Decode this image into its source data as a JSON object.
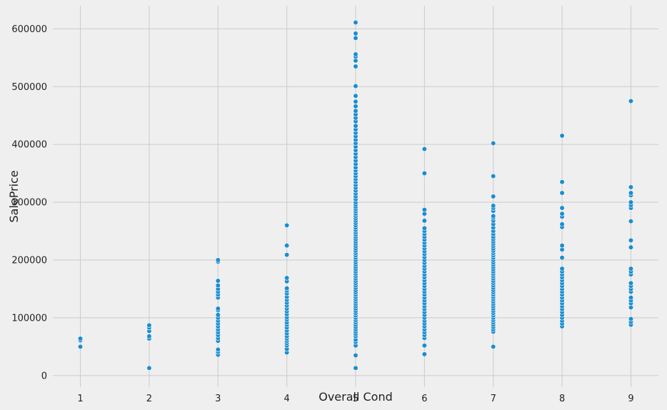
{
  "chart_data": {
    "type": "scatter",
    "xlabel": "Overall Cond",
    "ylabel": "SalePrice",
    "xlim": [
      0.6,
      9.4
    ],
    "ylim": [
      -20000,
      640000
    ],
    "xticks": [
      1,
      2,
      3,
      4,
      5,
      6,
      7,
      8,
      9
    ],
    "yticks": [
      0,
      100000,
      200000,
      300000,
      400000,
      500000,
      600000
    ],
    "grid": true,
    "colors": {
      "point": "#1b8dd0",
      "point_edge": "#ffffff",
      "background": "#efefef",
      "grid": "#cbcbcb"
    },
    "series": [
      {
        "points": [
          [
            1,
            50000
          ],
          [
            1,
            61000
          ],
          [
            1,
            64000
          ],
          [
            2,
            13000
          ],
          [
            2,
            64000
          ],
          [
            2,
            68000
          ],
          [
            2,
            77000
          ],
          [
            2,
            83000
          ],
          [
            2,
            87000
          ],
          [
            3,
            36000
          ],
          [
            3,
            41000
          ],
          [
            3,
            45000
          ],
          [
            3,
            60000
          ],
          [
            3,
            65000
          ],
          [
            3,
            70000
          ],
          [
            3,
            75000
          ],
          [
            3,
            80000
          ],
          [
            3,
            85000
          ],
          [
            3,
            90000
          ],
          [
            3,
            95000
          ],
          [
            3,
            100000
          ],
          [
            3,
            105000
          ],
          [
            3,
            113000
          ],
          [
            3,
            116000
          ],
          [
            3,
            135000
          ],
          [
            3,
            140000
          ],
          [
            3,
            145000
          ],
          [
            3,
            150000
          ],
          [
            3,
            156000
          ],
          [
            3,
            164000
          ],
          [
            3,
            197000
          ],
          [
            3,
            200000
          ],
          [
            4,
            40000
          ],
          [
            4,
            46000
          ],
          [
            4,
            52000
          ],
          [
            4,
            56000
          ],
          [
            4,
            60000
          ],
          [
            4,
            64000
          ],
          [
            4,
            68000
          ],
          [
            4,
            73000
          ],
          [
            4,
            78000
          ],
          [
            4,
            83000
          ],
          [
            4,
            88000
          ],
          [
            4,
            92000
          ],
          [
            4,
            97000
          ],
          [
            4,
            101000
          ],
          [
            4,
            106000
          ],
          [
            4,
            111000
          ],
          [
            4,
            116000
          ],
          [
            4,
            121000
          ],
          [
            4,
            126000
          ],
          [
            4,
            131000
          ],
          [
            4,
            136000
          ],
          [
            4,
            142000
          ],
          [
            4,
            147000
          ],
          [
            4,
            151000
          ],
          [
            4,
            163000
          ],
          [
            4,
            169000
          ],
          [
            4,
            209000
          ],
          [
            4,
            225000
          ],
          [
            4,
            260000
          ],
          [
            5,
            13000
          ],
          [
            5,
            35000
          ],
          [
            5,
            52000
          ],
          [
            5,
            58000
          ],
          [
            5,
            62000
          ],
          [
            5,
            68000
          ],
          [
            5,
            72000
          ],
          [
            5,
            76000
          ],
          [
            5,
            80000
          ],
          [
            5,
            84000
          ],
          [
            5,
            88000
          ],
          [
            5,
            92000
          ],
          [
            5,
            96000
          ],
          [
            5,
            100000
          ],
          [
            5,
            104000
          ],
          [
            5,
            108000
          ],
          [
            5,
            112000
          ],
          [
            5,
            116000
          ],
          [
            5,
            120000
          ],
          [
            5,
            124000
          ],
          [
            5,
            128000
          ],
          [
            5,
            132000
          ],
          [
            5,
            136000
          ],
          [
            5,
            140000
          ],
          [
            5,
            144000
          ],
          [
            5,
            148000
          ],
          [
            5,
            152000
          ],
          [
            5,
            156000
          ],
          [
            5,
            160000
          ],
          [
            5,
            164000
          ],
          [
            5,
            168000
          ],
          [
            5,
            172000
          ],
          [
            5,
            176000
          ],
          [
            5,
            180000
          ],
          [
            5,
            184000
          ],
          [
            5,
            188000
          ],
          [
            5,
            192000
          ],
          [
            5,
            196000
          ],
          [
            5,
            200000
          ],
          [
            5,
            204000
          ],
          [
            5,
            208000
          ],
          [
            5,
            212000
          ],
          [
            5,
            216000
          ],
          [
            5,
            220000
          ],
          [
            5,
            224000
          ],
          [
            5,
            228000
          ],
          [
            5,
            232000
          ],
          [
            5,
            236000
          ],
          [
            5,
            240000
          ],
          [
            5,
            244000
          ],
          [
            5,
            248000
          ],
          [
            5,
            252000
          ],
          [
            5,
            256000
          ],
          [
            5,
            260000
          ],
          [
            5,
            264000
          ],
          [
            5,
            268000
          ],
          [
            5,
            272000
          ],
          [
            5,
            276000
          ],
          [
            5,
            280000
          ],
          [
            5,
            284000
          ],
          [
            5,
            288000
          ],
          [
            5,
            292000
          ],
          [
            5,
            296000
          ],
          [
            5,
            300000
          ],
          [
            5,
            305000
          ],
          [
            5,
            310000
          ],
          [
            5,
            315000
          ],
          [
            5,
            320000
          ],
          [
            5,
            325000
          ],
          [
            5,
            330000
          ],
          [
            5,
            335000
          ],
          [
            5,
            340000
          ],
          [
            5,
            345000
          ],
          [
            5,
            350000
          ],
          [
            5,
            355000
          ],
          [
            5,
            360000
          ],
          [
            5,
            366000
          ],
          [
            5,
            372000
          ],
          [
            5,
            378000
          ],
          [
            5,
            384000
          ],
          [
            5,
            390000
          ],
          [
            5,
            396000
          ],
          [
            5,
            402000
          ],
          [
            5,
            408000
          ],
          [
            5,
            414000
          ],
          [
            5,
            420000
          ],
          [
            5,
            426000
          ],
          [
            5,
            432000
          ],
          [
            5,
            440000
          ],
          [
            5,
            446000
          ],
          [
            5,
            452000
          ],
          [
            5,
            458000
          ],
          [
            5,
            466000
          ],
          [
            5,
            474000
          ],
          [
            5,
            484000
          ],
          [
            5,
            501000
          ],
          [
            5,
            535000
          ],
          [
            5,
            545000
          ],
          [
            5,
            552000
          ],
          [
            5,
            556000
          ],
          [
            5,
            584000
          ],
          [
            5,
            592000
          ],
          [
            5,
            611000
          ],
          [
            6,
            37000
          ],
          [
            6,
            52000
          ],
          [
            6,
            65000
          ],
          [
            6,
            70000
          ],
          [
            6,
            75000
          ],
          [
            6,
            80000
          ],
          [
            6,
            85000
          ],
          [
            6,
            90000
          ],
          [
            6,
            95000
          ],
          [
            6,
            100000
          ],
          [
            6,
            105000
          ],
          [
            6,
            110000
          ],
          [
            6,
            115000
          ],
          [
            6,
            120000
          ],
          [
            6,
            125000
          ],
          [
            6,
            130000
          ],
          [
            6,
            135000
          ],
          [
            6,
            140000
          ],
          [
            6,
            145000
          ],
          [
            6,
            150000
          ],
          [
            6,
            155000
          ],
          [
            6,
            160000
          ],
          [
            6,
            165000
          ],
          [
            6,
            170000
          ],
          [
            6,
            175000
          ],
          [
            6,
            180000
          ],
          [
            6,
            185000
          ],
          [
            6,
            190000
          ],
          [
            6,
            195000
          ],
          [
            6,
            200000
          ],
          [
            6,
            205000
          ],
          [
            6,
            210000
          ],
          [
            6,
            215000
          ],
          [
            6,
            220000
          ],
          [
            6,
            225000
          ],
          [
            6,
            230000
          ],
          [
            6,
            235000
          ],
          [
            6,
            240000
          ],
          [
            6,
            245000
          ],
          [
            6,
            250000
          ],
          [
            6,
            255000
          ],
          [
            6,
            268000
          ],
          [
            6,
            280000
          ],
          [
            6,
            287000
          ],
          [
            6,
            350000
          ],
          [
            6,
            392000
          ],
          [
            7,
            50000
          ],
          [
            7,
            76000
          ],
          [
            7,
            80000
          ],
          [
            7,
            84000
          ],
          [
            7,
            88000
          ],
          [
            7,
            92000
          ],
          [
            7,
            96000
          ],
          [
            7,
            100000
          ],
          [
            7,
            104000
          ],
          [
            7,
            108000
          ],
          [
            7,
            112000
          ],
          [
            7,
            116000
          ],
          [
            7,
            120000
          ],
          [
            7,
            124000
          ],
          [
            7,
            128000
          ],
          [
            7,
            132000
          ],
          [
            7,
            136000
          ],
          [
            7,
            140000
          ],
          [
            7,
            144000
          ],
          [
            7,
            148000
          ],
          [
            7,
            152000
          ],
          [
            7,
            156000
          ],
          [
            7,
            160000
          ],
          [
            7,
            164000
          ],
          [
            7,
            168000
          ],
          [
            7,
            172000
          ],
          [
            7,
            176000
          ],
          [
            7,
            180000
          ],
          [
            7,
            184000
          ],
          [
            7,
            188000
          ],
          [
            7,
            192000
          ],
          [
            7,
            196000
          ],
          [
            7,
            200000
          ],
          [
            7,
            204000
          ],
          [
            7,
            208000
          ],
          [
            7,
            212000
          ],
          [
            7,
            216000
          ],
          [
            7,
            220000
          ],
          [
            7,
            224000
          ],
          [
            7,
            228000
          ],
          [
            7,
            232000
          ],
          [
            7,
            236000
          ],
          [
            7,
            240000
          ],
          [
            7,
            245000
          ],
          [
            7,
            250000
          ],
          [
            7,
            256000
          ],
          [
            7,
            262000
          ],
          [
            7,
            268000
          ],
          [
            7,
            273000
          ],
          [
            7,
            276000
          ],
          [
            7,
            285000
          ],
          [
            7,
            290000
          ],
          [
            7,
            294000
          ],
          [
            7,
            310000
          ],
          [
            7,
            345000
          ],
          [
            7,
            402000
          ],
          [
            8,
            85000
          ],
          [
            8,
            90000
          ],
          [
            8,
            95000
          ],
          [
            8,
            100000
          ],
          [
            8,
            105000
          ],
          [
            8,
            110000
          ],
          [
            8,
            115000
          ],
          [
            8,
            120000
          ],
          [
            8,
            125000
          ],
          [
            8,
            130000
          ],
          [
            8,
            135000
          ],
          [
            8,
            140000
          ],
          [
            8,
            145000
          ],
          [
            8,
            150000
          ],
          [
            8,
            155000
          ],
          [
            8,
            160000
          ],
          [
            8,
            165000
          ],
          [
            8,
            170000
          ],
          [
            8,
            175000
          ],
          [
            8,
            180000
          ],
          [
            8,
            185000
          ],
          [
            8,
            204000
          ],
          [
            8,
            218000
          ],
          [
            8,
            225000
          ],
          [
            8,
            257000
          ],
          [
            8,
            262000
          ],
          [
            8,
            275000
          ],
          [
            8,
            280000
          ],
          [
            8,
            290000
          ],
          [
            8,
            316000
          ],
          [
            8,
            335000
          ],
          [
            8,
            415000
          ],
          [
            9,
            88000
          ],
          [
            9,
            93000
          ],
          [
            9,
            98000
          ],
          [
            9,
            118000
          ],
          [
            9,
            125000
          ],
          [
            9,
            130000
          ],
          [
            9,
            135000
          ],
          [
            9,
            145000
          ],
          [
            9,
            150000
          ],
          [
            9,
            155000
          ],
          [
            9,
            160000
          ],
          [
            9,
            175000
          ],
          [
            9,
            180000
          ],
          [
            9,
            185000
          ],
          [
            9,
            222000
          ],
          [
            9,
            234000
          ],
          [
            9,
            267000
          ],
          [
            9,
            290000
          ],
          [
            9,
            295000
          ],
          [
            9,
            300000
          ],
          [
            9,
            312000
          ],
          [
            9,
            316000
          ],
          [
            9,
            326000
          ],
          [
            9,
            475000
          ]
        ]
      }
    ]
  }
}
